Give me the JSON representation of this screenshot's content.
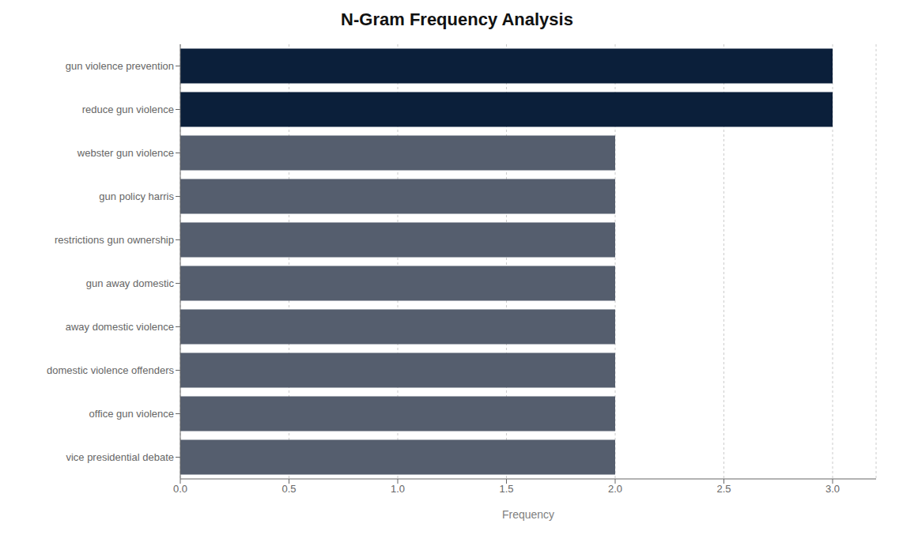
{
  "chart_data": {
    "type": "bar",
    "title": "N-Gram Frequency Analysis",
    "xlabel": "Frequency",
    "orientation": "horizontal",
    "categories": [
      "gun violence prevention",
      "reduce gun violence",
      "webster gun violence",
      "gun policy harris",
      "restrictions gun ownership",
      "gun away domestic",
      "away domestic violence",
      "domestic violence offenders",
      "office gun violence",
      "vice presidential debate"
    ],
    "values": [
      3,
      3,
      2,
      2,
      2,
      2,
      2,
      2,
      2,
      2
    ],
    "colors": [
      "#0b1f3a",
      "#0b1f3a",
      "#555e6e",
      "#555e6e",
      "#555e6e",
      "#555e6e",
      "#555e6e",
      "#555e6e",
      "#555e6e",
      "#555e6e"
    ],
    "xlim": [
      0,
      3.2
    ],
    "xticks": [
      {
        "value": 0,
        "label": "0.0"
      },
      0.5,
      {
        "value": 1,
        "label": "1.0"
      },
      1.5,
      {
        "value": 2,
        "label": "2.0"
      },
      2.5,
      {
        "value": 3,
        "label": "3.0"
      }
    ],
    "grid": true
  }
}
